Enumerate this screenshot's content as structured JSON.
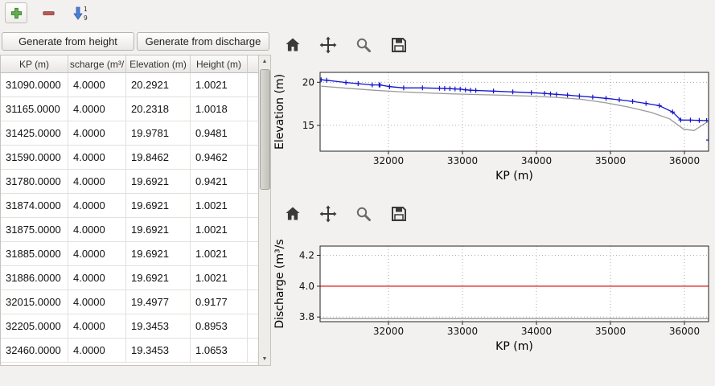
{
  "main_toolbar": {
    "add_button": {
      "icon": "plus-icon"
    },
    "remove_button": {
      "icon": "minus-icon"
    },
    "sort_button": {
      "icon": "sort-ascending-icon",
      "digit_top": "1",
      "digit_bottom": "9"
    }
  },
  "left_panel": {
    "generate_from_height_label": "Generate from height",
    "generate_from_discharge_label": "Generate from discharge",
    "table": {
      "columns": [
        "KP (m)",
        "scharge (m³/",
        "Elevation (m)",
        "Height (m)"
      ],
      "rows": [
        [
          "31090.0000",
          "4.0000",
          "20.2921",
          "1.0021"
        ],
        [
          "31165.0000",
          "4.0000",
          "20.2318",
          "1.0018"
        ],
        [
          "31425.0000",
          "4.0000",
          "19.9781",
          "0.9481"
        ],
        [
          "31590.0000",
          "4.0000",
          "19.8462",
          "0.9462"
        ],
        [
          "31780.0000",
          "4.0000",
          "19.6921",
          "0.9421"
        ],
        [
          "31874.0000",
          "4.0000",
          "19.6921",
          "1.0021"
        ],
        [
          "31875.0000",
          "4.0000",
          "19.6921",
          "1.0021"
        ],
        [
          "31885.0000",
          "4.0000",
          "19.6921",
          "1.0021"
        ],
        [
          "31886.0000",
          "4.0000",
          "19.6921",
          "1.0021"
        ],
        [
          "32015.0000",
          "4.0000",
          "19.4977",
          "0.9177"
        ],
        [
          "32205.0000",
          "4.0000",
          "19.3453",
          "0.8953"
        ],
        [
          "32460.0000",
          "4.0000",
          "19.3453",
          "1.0653"
        ]
      ]
    }
  },
  "chart_toolbar_icons": [
    "home",
    "pan",
    "zoom",
    "save"
  ],
  "chart_data": [
    {
      "type": "line",
      "title": "",
      "xlabel": "KP (m)",
      "ylabel": "Elevation (m)",
      "xlim": [
        31076,
        36326
      ],
      "ylim": [
        12.0,
        21.15
      ],
      "xticks": [
        32000,
        33000,
        34000,
        35000,
        36000
      ],
      "yticks": [
        15,
        20
      ],
      "ytick_labels": [
        "15",
        "20"
      ],
      "grid": true,
      "legend": "none",
      "series": [
        {
          "name": "water-elevation",
          "color": "#1414cc",
          "marker": "+",
          "x": [
            31090,
            31165,
            31425,
            31590,
            31780,
            31874,
            31875,
            31885,
            31886,
            32015,
            32205,
            32460,
            32690,
            32760,
            32830,
            32900,
            32970,
            33040,
            33110,
            33180,
            33420,
            33680,
            33930,
            34110,
            34190,
            34270,
            34420,
            34580,
            34760,
            34940,
            35120,
            35300,
            35480,
            35660,
            35840,
            35950,
            36080,
            36200,
            36300,
            36326,
            36326
          ],
          "y": [
            20.2921,
            20.2318,
            19.9781,
            19.8462,
            19.6921,
            19.6921,
            19.6921,
            19.6921,
            19.6921,
            19.4977,
            19.3453,
            19.3453,
            19.3,
            19.28,
            19.26,
            19.23,
            19.2,
            19.12,
            19.08,
            19.05,
            18.97,
            18.88,
            18.79,
            18.71,
            18.65,
            18.59,
            18.51,
            18.4,
            18.27,
            18.13,
            17.97,
            17.78,
            17.55,
            17.28,
            16.55,
            15.62,
            15.6,
            15.58,
            15.55,
            15.55,
            13.3
          ]
        },
        {
          "name": "bed-profile",
          "color": "#9a9a9a",
          "marker": "none",
          "x": [
            31090,
            31450,
            31800,
            32150,
            32500,
            32850,
            33200,
            33550,
            33900,
            34250,
            34600,
            34950,
            35250,
            35550,
            35800,
            35990,
            36130,
            36326
          ],
          "y": [
            19.55,
            19.3,
            19.08,
            18.9,
            18.77,
            18.66,
            18.57,
            18.5,
            18.4,
            18.26,
            18.03,
            17.6,
            17.12,
            16.5,
            15.75,
            14.55,
            14.4,
            15.5
          ]
        }
      ]
    },
    {
      "type": "line",
      "title": "",
      "xlabel": "KP (m)",
      "ylabel": "Discharge (m³/s",
      "xlim": [
        31076,
        36326
      ],
      "ylim": [
        3.77,
        4.26
      ],
      "xticks": [
        32000,
        33000,
        34000,
        35000,
        36000
      ],
      "yticks": [
        3.8,
        4.0,
        4.2
      ],
      "ytick_labels": [
        "3.8",
        "4.0",
        "4.2"
      ],
      "grid": true,
      "legend": "none",
      "series": [
        {
          "name": "discharge",
          "color": "#e01010",
          "marker": "none",
          "x": [
            31076,
            36326
          ],
          "y": [
            4.0,
            4.0
          ]
        },
        {
          "name": "baseline",
          "color": "#9a9a9a",
          "marker": "none",
          "x": [
            31076,
            36326
          ],
          "y": [
            3.79,
            3.79
          ]
        }
      ]
    }
  ]
}
